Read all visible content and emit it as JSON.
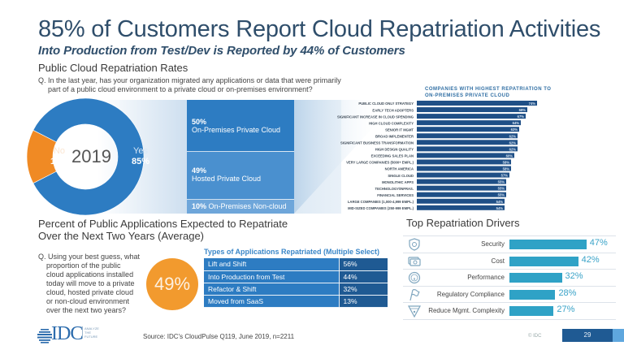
{
  "header": {
    "title": "85% of Customers Report Cloud Repatriation Activities",
    "subtitle": "Into Production from Test/Dev is Reported by 44% of Customers"
  },
  "section1": {
    "title": "Public Cloud Repatriation Rates",
    "question_line1": "Q. In the last year, has your organization migrated any applications or data that were primarily",
    "question_line2": "part of a public cloud environment to a private cloud or on-premises environment?",
    "donut": {
      "center_label": "2019",
      "no_label": "No",
      "no_value": "15%",
      "yes_label": "Yes",
      "yes_value": "85%"
    },
    "breakdown": [
      {
        "pct": "50%",
        "label": "On-Premises Private Cloud"
      },
      {
        "pct": "49%",
        "label": "Hosted Private Cloud"
      },
      {
        "pct": "10%",
        "label": "On-Premises Non-cloud"
      }
    ]
  },
  "section2": {
    "title_line1": "Percent of Public Applications Expected to Repatriate",
    "title_line2": "Over the Next Two Years (Average)",
    "question_first": "Q. Using your best guess, what",
    "question_rest": [
      "proportion of the public",
      "cloud applications installed",
      "today will move to a private",
      "cloud, hosted private cloud",
      "or non-cloud environment",
      "over the next two years?"
    ],
    "big_value": "49%",
    "types_title": "Types of Applications Repatriated (Multiple Select)",
    "types": [
      {
        "label": "Lift and Shift",
        "value": "56%"
      },
      {
        "label": "Into Production from Test",
        "value": "44%"
      },
      {
        "label": "Refactor & Shift",
        "value": "32%"
      },
      {
        "label": "Moved from SaaS",
        "value": "13%"
      }
    ]
  },
  "drivers": {
    "title": "Top Repatriation Drivers"
  },
  "footer": {
    "logo_text": "IDC",
    "tagline": [
      "ANALYZE",
      "THE",
      "FUTURE"
    ],
    "source": "Source: IDC's CloudPulse Q119, June 2019, n=2211",
    "copyright": "© IDC",
    "page_number": "29"
  },
  "colors": {
    "title_blue": "#2f4e6b",
    "donut_blue": "#2d7cc2",
    "donut_orange": "#f08a24",
    "company_bar": "#1f4f86",
    "driver_bar": "#2fa2c6",
    "orange_circle": "#f29a2e"
  },
  "chart_data": [
    {
      "type": "pie",
      "title": "Public Cloud Repatriation Rates",
      "center_label": "2019",
      "categories": [
        "Yes",
        "No"
      ],
      "values": [
        85,
        15
      ]
    },
    {
      "type": "bar",
      "orientation": "horizontal",
      "title": "COMPANIES WITH HIGHEST REPATRIATION TO ON-PREMISES PRIVATE CLOUD",
      "categories": [
        "PUBLIC CLOUD ONLY STRATEGY",
        "EARLY TECH ADOPTERS",
        "SIGNIFICANT INCREASE IN CLOUD SPENDING",
        "HIGH CLOUD COMPLEXITY",
        "SENIOR IT MGMT",
        "BROAD IMPLEMENTER",
        "SIGNIFICANT BUSINESS TRANSFORMATION",
        "HIGH DESIGN QUALITY",
        "EXCEEDING SALES PLAN",
        "VERY LARGE COMPANIES (5000+ EMPL.)",
        "NORTH AMERICA",
        "SINGLE CLOUD",
        "MONOLITHIC APPS",
        "TECHNOLOGY/INFRAS.",
        "FINANCIAL SERVICES",
        "LARGE COMPANIES (1,000-4,999 EMPL.)",
        "MID-SIZED COMPANIES (250-999 EMPL.)"
      ],
      "values": [
        74,
        68,
        67,
        64,
        63,
        62,
        62,
        62,
        60,
        58,
        58,
        57,
        55,
        55,
        55,
        54,
        54
      ],
      "value_labels": [
        "74%",
        "68%",
        "67%",
        "64%",
        "63%",
        "62%",
        "62%",
        "62%",
        "60%",
        "58%",
        "58%",
        "57%",
        "55%",
        "55%",
        "55%",
        "54%",
        "54%"
      ],
      "xlim": [
        0,
        100
      ],
      "grid": false
    },
    {
      "type": "bar",
      "orientation": "horizontal",
      "title": "Top Repatriation Drivers",
      "categories": [
        "Security",
        "Cost",
        "Performance",
        "Regulatory Compliance",
        "Reduce Mgmt. Complexity"
      ],
      "icons": [
        "shield-icon",
        "money-icon",
        "gauge-icon",
        "flag-icon",
        "funnel-icon"
      ],
      "values": [
        47,
        42,
        32,
        28,
        27
      ],
      "value_labels": [
        "47%",
        "42%",
        "32%",
        "28%",
        "27%"
      ],
      "xlim": [
        0,
        50
      ],
      "grid": false
    }
  ]
}
